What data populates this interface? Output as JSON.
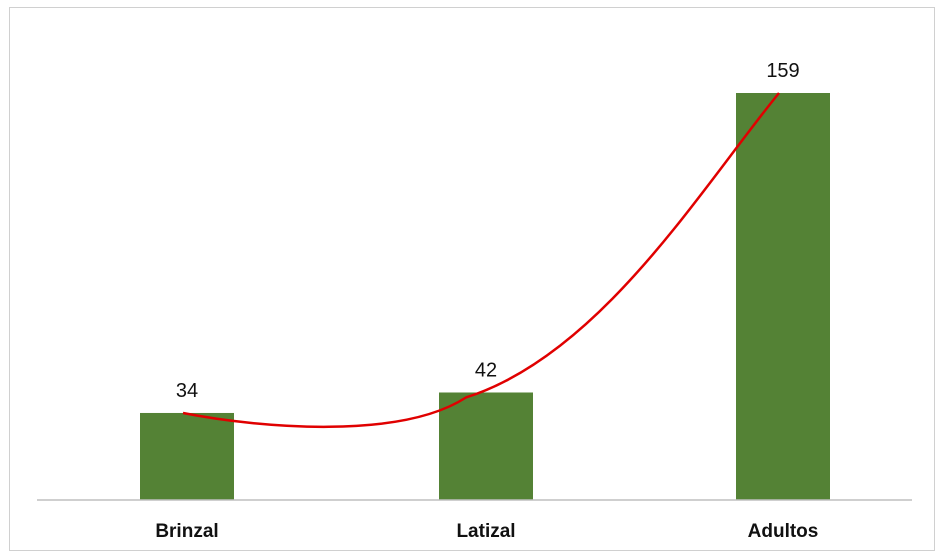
{
  "chart_data": {
    "type": "bar",
    "categories": [
      "Brinzal",
      "Latizal",
      "Adultos"
    ],
    "values": [
      34,
      42,
      159
    ],
    "ylim": [
      0,
      175
    ],
    "trendline": {
      "type": "polynomial",
      "color": "#e00000"
    },
    "colors": {
      "bar": "#548235",
      "trend": "#e00000",
      "axis": "#bfbfbf"
    },
    "grid": false,
    "legend": "none"
  }
}
